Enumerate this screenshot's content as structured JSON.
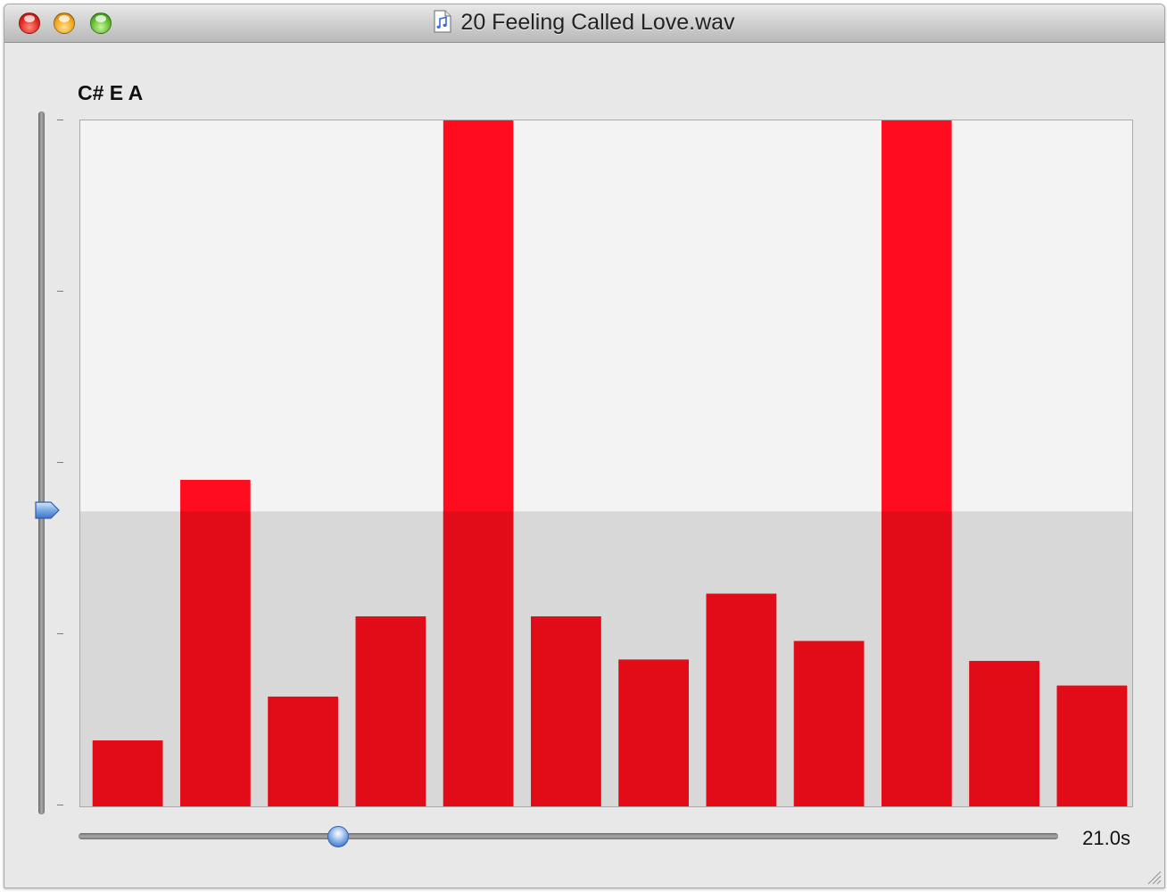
{
  "window": {
    "title": "20 Feeling Called Love.wav",
    "file_icon": "music-file-icon"
  },
  "chord": {
    "label": "C# E A"
  },
  "threshold_slider": {
    "level": 0.43
  },
  "position_slider": {
    "value": 0.265,
    "time_label": "21.0s"
  },
  "colors": {
    "bar": "#ff0d1f",
    "bar_dark": "#e10c18",
    "plot_bg": "#f3f3f3",
    "below_threshold_bg": "#d8d8d8"
  },
  "chart_data": {
    "type": "bar",
    "title": "",
    "xlabel": "",
    "ylabel": "",
    "categories": [
      "",
      "",
      "",
      "",
      "",
      "",
      "",
      "",
      "",
      "",
      "",
      ""
    ],
    "values": [
      0.096,
      0.476,
      0.16,
      0.277,
      1.0,
      0.277,
      0.214,
      0.31,
      0.241,
      1.0,
      0.212,
      0.176
    ],
    "ylim": [
      0,
      1
    ],
    "yticks": 5,
    "grid": false,
    "legend": "none"
  }
}
